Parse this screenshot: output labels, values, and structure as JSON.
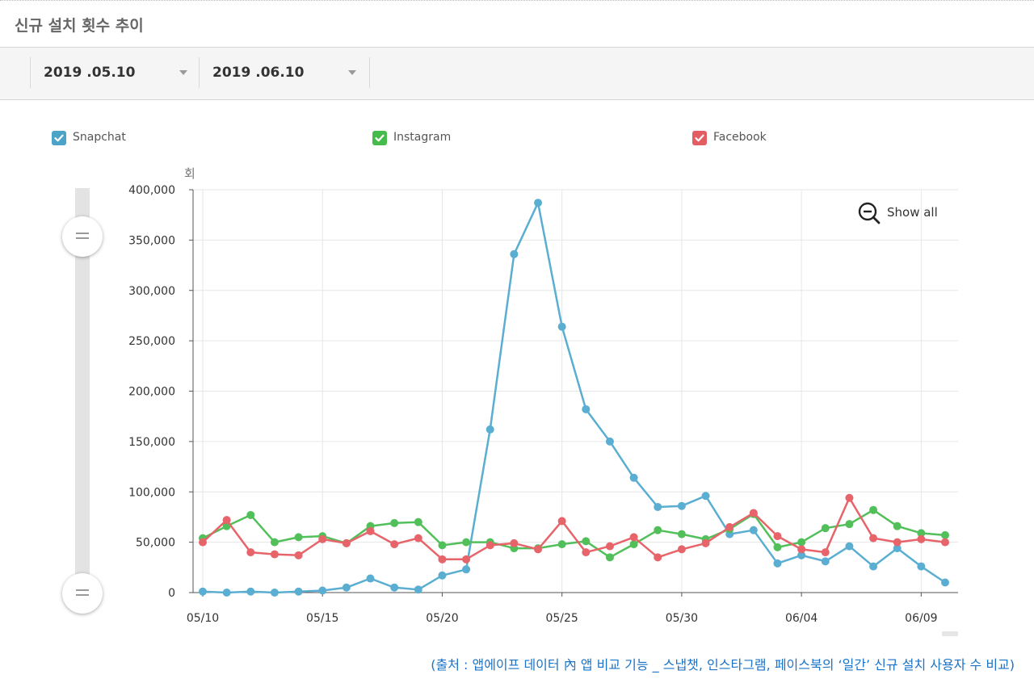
{
  "page": {
    "title": "신규 설치 횟수 추이"
  },
  "date_range": {
    "start": "2019 .05.10",
    "end": "2019 .06.10"
  },
  "legend": [
    {
      "name": "Snapchat",
      "color": "#4ba3c7"
    },
    {
      "name": "Instagram",
      "color": "#44bb4a"
    },
    {
      "name": "Facebook",
      "color": "#e35d62"
    }
  ],
  "controls": {
    "show_all_label": "Show all"
  },
  "source_caption": "(출처 : 앱에이프 데이터 內 앱 비교 기능 _ 스냅챗, 인스타그램, 페이스북의 ‘일간’ 신규 설치 사용자 수 비교)",
  "colors": {
    "snapchat": "#5aaed1",
    "instagram": "#52c05a",
    "facebook": "#e6646a",
    "grid": "#e6e6e6",
    "axis": "#555555"
  },
  "chart_data": {
    "type": "line",
    "title": "신규 설치 횟수 추이",
    "ylabel": "회",
    "xlabel": "",
    "ylim": [
      0,
      400000
    ],
    "y_ticks": [
      0,
      50000,
      100000,
      150000,
      200000,
      250000,
      300000,
      350000,
      400000
    ],
    "y_tick_labels": [
      "0",
      "50,000",
      "100,000",
      "150,000",
      "200,000",
      "250,000",
      "300,000",
      "350,000",
      "400,000"
    ],
    "x": [
      "05/10",
      "05/11",
      "05/12",
      "05/13",
      "05/14",
      "05/15",
      "05/16",
      "05/17",
      "05/18",
      "05/19",
      "05/20",
      "05/21",
      "05/22",
      "05/23",
      "05/24",
      "05/25",
      "05/26",
      "05/27",
      "05/28",
      "05/29",
      "05/30",
      "05/31",
      "06/01",
      "06/02",
      "06/03",
      "06/04",
      "06/05",
      "06/06",
      "06/07",
      "06/08",
      "06/09",
      "06/10"
    ],
    "x_tick_labels": [
      "05/10",
      "05/15",
      "05/20",
      "05/25",
      "05/30",
      "06/04",
      "06/09"
    ],
    "grid": true,
    "series": [
      {
        "name": "Snapchat",
        "values": [
          1000,
          0,
          1000,
          0,
          1000,
          2000,
          5000,
          14000,
          5000,
          3000,
          17000,
          23000,
          162000,
          336000,
          387000,
          264000,
          182000,
          150000,
          114000,
          85000,
          86000,
          96000,
          58000,
          62000,
          29000,
          37000,
          31000,
          46000,
          26000,
          44000,
          26000,
          10000
        ]
      },
      {
        "name": "Instagram",
        "values": [
          54000,
          66000,
          77000,
          50000,
          55000,
          56000,
          49000,
          66000,
          69000,
          70000,
          47000,
          50000,
          50000,
          44000,
          44000,
          48000,
          51000,
          35000,
          48000,
          62000,
          58000,
          53000,
          63000,
          78000,
          45000,
          50000,
          64000,
          68000,
          82000,
          66000,
          59000,
          57000
        ]
      },
      {
        "name": "Facebook",
        "values": [
          50000,
          72000,
          40000,
          38000,
          37000,
          53000,
          49000,
          61000,
          48000,
          54000,
          33000,
          33000,
          47000,
          49000,
          43000,
          71000,
          40000,
          46000,
          55000,
          35000,
          43000,
          49000,
          65000,
          79000,
          56000,
          43000,
          40000,
          94000,
          54000,
          50000,
          53000,
          50000
        ]
      }
    ]
  }
}
